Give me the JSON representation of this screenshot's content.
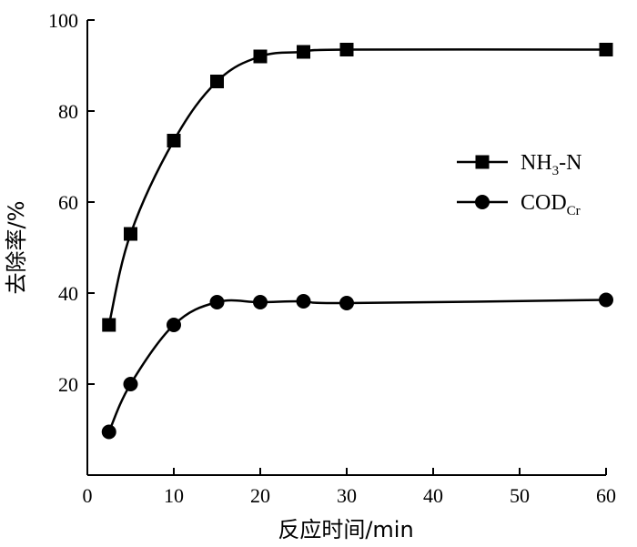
{
  "chart_data": {
    "type": "line",
    "xlabel": "反应时间/min",
    "ylabel": "去除率/%",
    "xlim": [
      0,
      60
    ],
    "ylim": [
      0,
      100
    ],
    "xticks": [
      0,
      10,
      20,
      30,
      40,
      50,
      60
    ],
    "yticks": [
      20,
      40,
      60,
      80,
      100
    ],
    "grid": false,
    "legend_position": "right",
    "series": [
      {
        "name": "NH3-N",
        "label_main": "NH",
        "label_sub": "3",
        "label_tail": "-N",
        "marker": "square",
        "color": "#000000",
        "x": [
          2.5,
          5,
          10,
          15,
          20,
          25,
          30,
          60
        ],
        "y": [
          33,
          53,
          73.5,
          86.5,
          92,
          93,
          93.5,
          93.5
        ]
      },
      {
        "name": "CODCr",
        "label_main": "COD",
        "label_sub": "Cr",
        "label_tail": "",
        "marker": "circle",
        "color": "#000000",
        "x": [
          2.5,
          5,
          10,
          15,
          20,
          25,
          30,
          60
        ],
        "y": [
          9.5,
          20,
          33,
          38,
          38,
          38.2,
          37.8,
          38.5
        ]
      }
    ]
  }
}
